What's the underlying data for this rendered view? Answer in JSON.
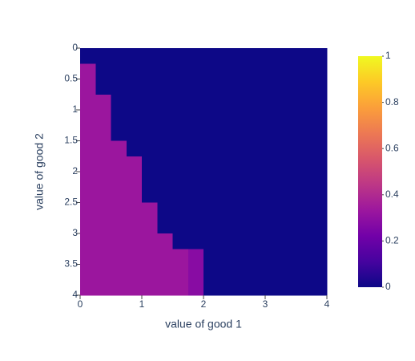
{
  "chart_data": {
    "type": "heatmap",
    "x_label": "value of good 1",
    "y_label": "value of good 2",
    "xbins": [
      0,
      0.25,
      0.5,
      0.75,
      1,
      1.25,
      1.5,
      1.75,
      2,
      2.25,
      2.5,
      2.75,
      3,
      3.25,
      3.5,
      3.75,
      4
    ],
    "ybins": [
      0,
      0.25,
      0.5,
      0.75,
      1,
      1.25,
      1.5,
      1.75,
      2,
      2.25,
      2.5,
      2.75,
      3,
      3.25,
      3.5,
      3.75,
      4
    ],
    "z": [
      [
        0,
        0,
        0,
        0,
        0,
        0,
        0,
        0,
        0,
        0,
        0,
        0,
        0,
        0,
        0,
        0
      ],
      [
        0.33,
        0,
        0,
        0,
        0,
        0,
        0,
        0,
        0,
        0,
        0,
        0,
        0,
        0,
        0,
        0
      ],
      [
        0.33,
        0,
        0,
        0,
        0,
        0,
        0,
        0,
        0,
        0,
        0,
        0,
        0,
        0,
        0,
        0
      ],
      [
        0.33,
        0.33,
        0,
        0,
        0,
        0,
        0,
        0,
        0,
        0,
        0,
        0,
        0,
        0,
        0,
        0
      ],
      [
        0.33,
        0.33,
        0,
        0,
        0,
        0,
        0,
        0,
        0,
        0,
        0,
        0,
        0,
        0,
        0,
        0
      ],
      [
        0.33,
        0.33,
        0,
        0,
        0,
        0,
        0,
        0,
        0,
        0,
        0,
        0,
        0,
        0,
        0,
        0
      ],
      [
        0.33,
        0.33,
        0.33,
        0,
        0,
        0,
        0,
        0,
        0,
        0,
        0,
        0,
        0,
        0,
        0,
        0
      ],
      [
        0.33,
        0.33,
        0.33,
        0.33,
        0,
        0,
        0,
        0,
        0,
        0,
        0,
        0,
        0,
        0,
        0,
        0
      ],
      [
        0.33,
        0.33,
        0.33,
        0.33,
        0,
        0,
        0,
        0,
        0,
        0,
        0,
        0,
        0,
        0,
        0,
        0
      ],
      [
        0.33,
        0.33,
        0.33,
        0.33,
        0,
        0,
        0,
        0,
        0,
        0,
        0,
        0,
        0,
        0,
        0,
        0
      ],
      [
        0.33,
        0.33,
        0.33,
        0.33,
        0.33,
        0,
        0,
        0,
        0,
        0,
        0,
        0,
        0,
        0,
        0,
        0
      ],
      [
        0.33,
        0.33,
        0.33,
        0.33,
        0.33,
        0,
        0,
        0,
        0,
        0,
        0,
        0,
        0,
        0,
        0,
        0
      ],
      [
        0.33,
        0.33,
        0.33,
        0.33,
        0.33,
        0.33,
        0,
        0,
        0,
        0,
        0,
        0,
        0,
        0,
        0,
        0
      ],
      [
        0.33,
        0.33,
        0.33,
        0.33,
        0.33,
        0.33,
        0.33,
        0.28,
        0,
        0,
        0,
        0,
        0,
        0,
        0,
        0
      ],
      [
        0.33,
        0.33,
        0.33,
        0.33,
        0.33,
        0.33,
        0.33,
        0.28,
        0,
        0,
        0,
        0,
        0,
        0,
        0,
        0
      ],
      [
        0.33,
        0.33,
        0.33,
        0.33,
        0.33,
        0.33,
        0.33,
        0.28,
        0,
        0,
        0,
        0,
        0,
        0,
        0,
        0
      ]
    ],
    "xlim": [
      0,
      4
    ],
    "xticks": [
      0,
      1,
      2,
      3,
      4
    ],
    "ylim": [
      4,
      0
    ],
    "yticks": [
      0,
      0.5,
      1,
      1.5,
      2,
      2.5,
      3,
      3.5,
      4
    ],
    "zlim": [
      0,
      1
    ],
    "zticks": [
      0,
      0.2,
      0.4,
      0.6,
      0.8,
      1
    ],
    "colorscale": [
      [
        0,
        "#0d0887"
      ],
      [
        0.111,
        "#46039f"
      ],
      [
        0.222,
        "#7201a8"
      ],
      [
        0.333,
        "#9c179e"
      ],
      [
        0.444,
        "#bd3786"
      ],
      [
        0.556,
        "#d8576b"
      ],
      [
        0.667,
        "#ed7953"
      ],
      [
        0.778,
        "#fb9f3a"
      ],
      [
        0.889,
        "#fdca26"
      ],
      [
        1,
        "#f0f921"
      ]
    ]
  }
}
